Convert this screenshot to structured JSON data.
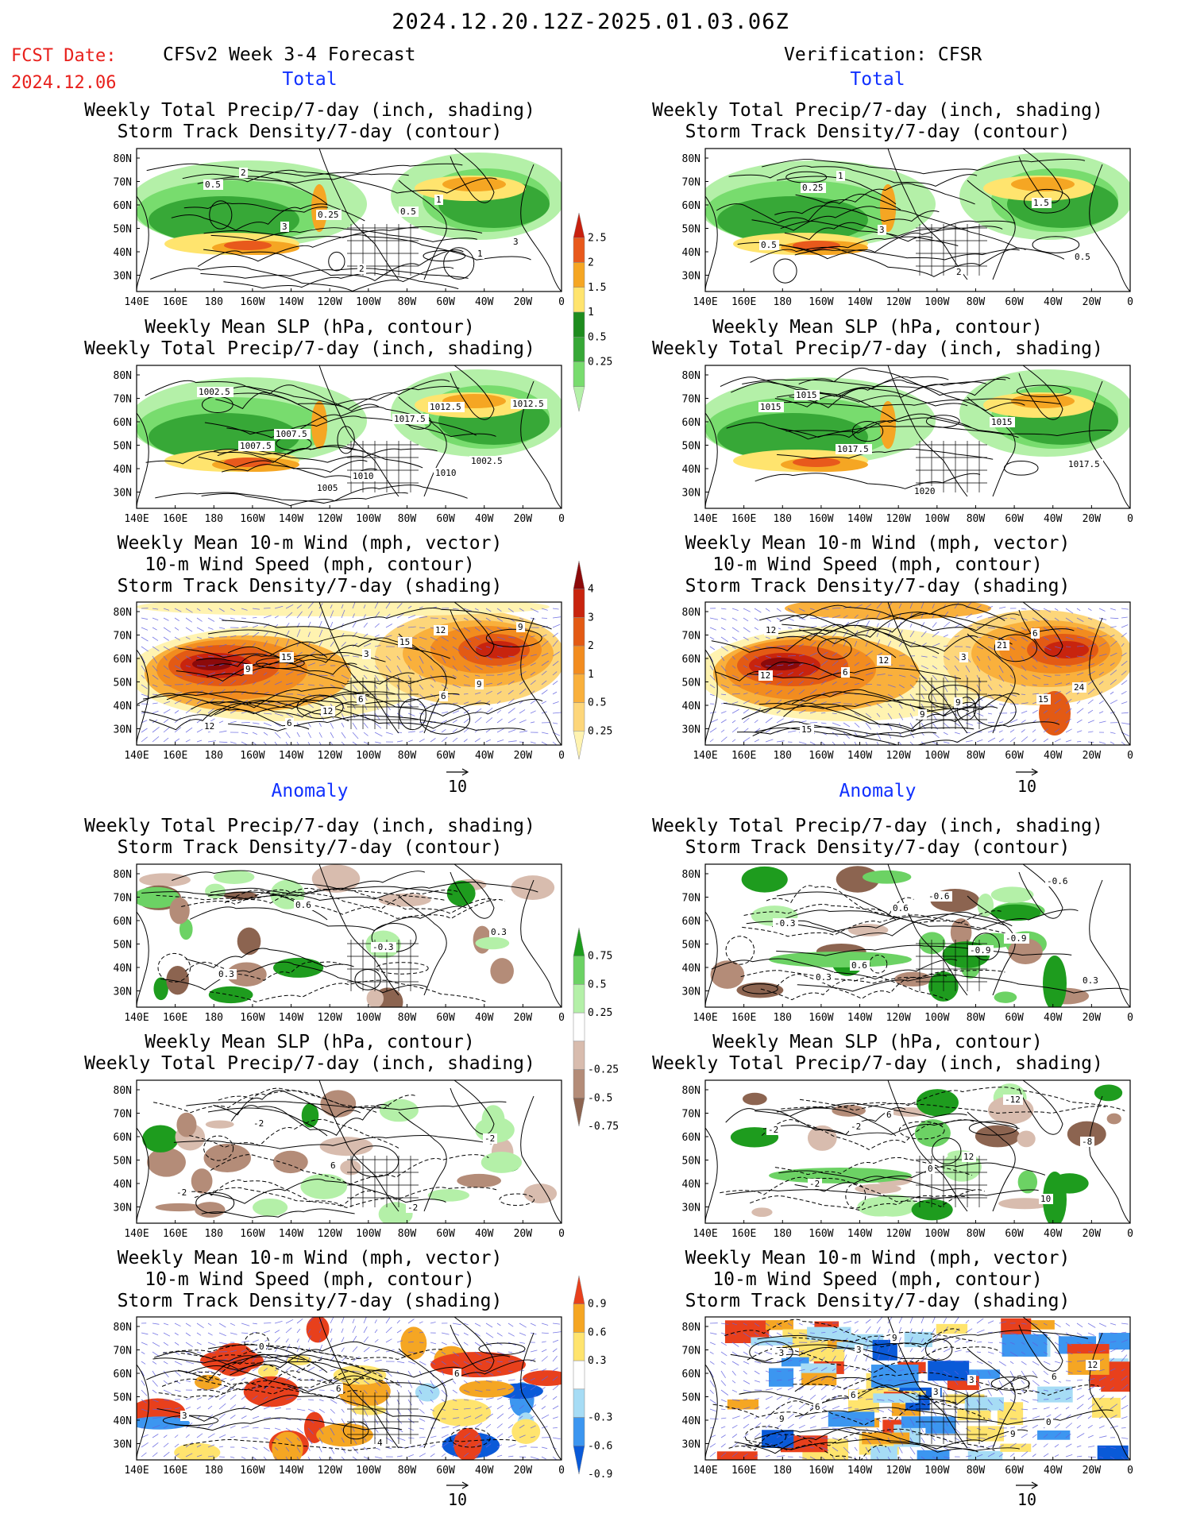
{
  "header": {
    "date_range": "2024.12.20.12Z-2025.01.03.06Z",
    "fcst_label": "FCST Date:",
    "fcst_date": "2024.12.06",
    "left_title": "CFSv2 Week 3-4 Forecast",
    "right_title": "Verification: CFSR"
  },
  "sections": {
    "total": "Total",
    "anomaly": "Anomaly"
  },
  "axes": {
    "lat_labels": [
      "80N",
      "70N",
      "60N",
      "50N",
      "40N",
      "30N"
    ],
    "lon_labels": [
      "140E",
      "160E",
      "180",
      "160W",
      "140W",
      "120W",
      "100W",
      "80W",
      "60W",
      "40W",
      "20W",
      "0"
    ]
  },
  "panels": {
    "precip_track": {
      "line1": "Weekly Total Precip/7-day (inch, shading)",
      "line2": "Storm Track Density/7-day (contour)"
    },
    "slp_precip": {
      "line1": "Weekly Mean SLP (hPa, contour)",
      "line2": "Weekly Total Precip/7-day (inch, shading)"
    },
    "wind_track": {
      "line1": "Weekly Mean 10-m Wind (mph, vector)",
      "line2": "10-m Wind Speed (mph, contour)",
      "line3": "Storm Track Density/7-day (shading)"
    }
  },
  "vector_ref": "10",
  "colorbars": {
    "precip_total": [
      "2.5",
      "2",
      "1.5",
      "1",
      "0.5",
      "0.25"
    ],
    "track_total": [
      "4",
      "3",
      "2",
      "1",
      "0.5",
      "0.25"
    ],
    "precip_anom": [
      "0.75",
      "0.5",
      "0.25",
      "-0.25",
      "-0.5",
      "-0.75"
    ],
    "track_anom": [
      "0.9",
      "0.6",
      "0.3",
      "-0.3",
      "-0.6",
      "-0.9"
    ]
  },
  "map_labels": {
    "fc_precip": [
      "0.5",
      "1",
      "0.5",
      "3",
      "2",
      "1",
      "3",
      "2",
      "0.25"
    ],
    "vf_precip": [
      "0.5",
      "0.25",
      "3",
      "2",
      "1.5",
      "0.5",
      "1"
    ],
    "fc_slp": [
      "1010",
      "1012.5",
      "1007.5",
      "1005",
      "1017.5",
      "1002.5",
      "1002.5",
      "1007.5",
      "1010",
      "1012.5"
    ],
    "vf_slp": [
      "1015",
      "1017.5",
      "1020",
      "1015",
      "1017.5",
      "1015"
    ],
    "fc_wind": [
      "6",
      "3",
      "6",
      "9",
      "9",
      "12",
      "15",
      "9",
      "12",
      "15",
      "6",
      "12"
    ],
    "vf_wind": [
      "3",
      "15",
      "12",
      "6",
      "9",
      "21",
      "24",
      "15",
      "12",
      "9",
      "6",
      "12"
    ],
    "fc_precip_anom": [
      "0.3",
      "0.3",
      "0.6",
      "-0.3"
    ],
    "vf_precip_anom": [
      "0.3",
      "0.6",
      "-0.9",
      "-0.6",
      "-0.3",
      "0.6",
      "-0.6",
      "-0.9",
      "0.3"
    ],
    "fc_slp_anom": [
      "-2",
      "-2",
      "6",
      "-2",
      "-2"
    ],
    "vf_slp_anom": [
      "-2",
      "0",
      "-12",
      "-8",
      "-2",
      "6",
      "12",
      "10",
      "-2"
    ],
    "fc_wind_anom": [
      "4",
      "6",
      "3",
      "0",
      "6"
    ],
    "vf_wind_anom": [
      "6",
      "9",
      "3",
      "3",
      "9",
      "12",
      "6",
      "9",
      "3",
      "0",
      "-3",
      "6"
    ]
  }
}
